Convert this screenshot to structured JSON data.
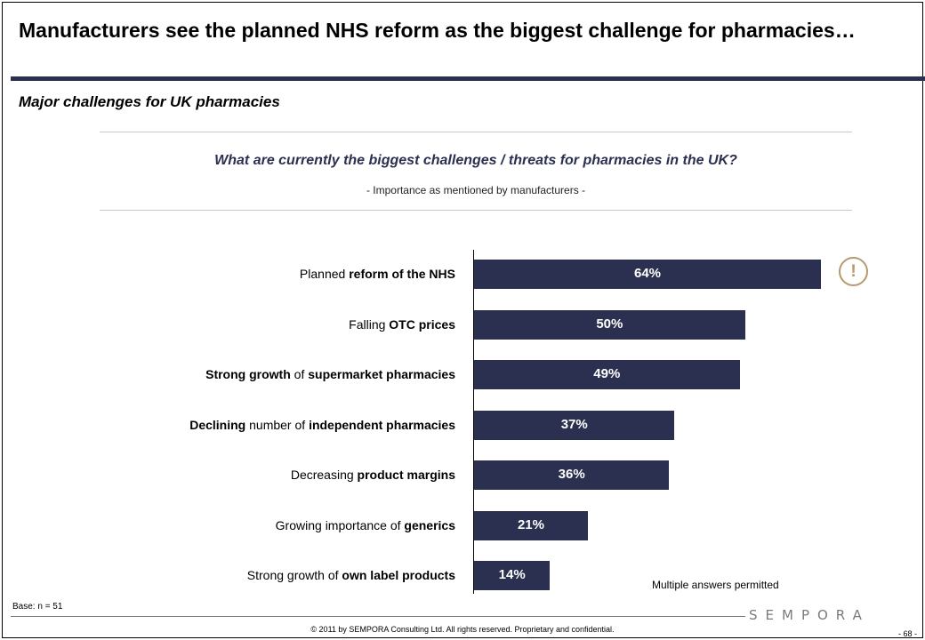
{
  "header": {
    "title": "Manufacturers see the planned NHS reform as the biggest challenge for pharmacies…",
    "subtitle": "Major challenges for UK pharmacies"
  },
  "chart_data": {
    "type": "bar",
    "orientation": "horizontal",
    "title": "What are currently the biggest challenges / threats for pharmacies in the UK?",
    "subtitle": "- Importance as mentioned by manufacturers -",
    "unit": "%",
    "xlim": [
      0,
      70
    ],
    "bar_color": "#2b3050",
    "categories": [
      {
        "parts": [
          {
            "t": "Planned ",
            "b": false
          },
          {
            "t": "reform of the NHS",
            "b": true
          }
        ],
        "value": 64,
        "label": "64%"
      },
      {
        "parts": [
          {
            "t": "Falling ",
            "b": false
          },
          {
            "t": "OTC prices",
            "b": true
          }
        ],
        "value": 50,
        "label": "50%"
      },
      {
        "parts": [
          {
            "t": "Strong growth",
            "b": true
          },
          {
            "t": " of ",
            "b": false
          },
          {
            "t": "supermarket pharmacies",
            "b": true
          }
        ],
        "value": 49,
        "label": "49%"
      },
      {
        "parts": [
          {
            "t": "Declining",
            "b": true
          },
          {
            "t": " number of ",
            "b": false
          },
          {
            "t": "independent pharmacies",
            "b": true
          }
        ],
        "value": 37,
        "label": "37%"
      },
      {
        "parts": [
          {
            "t": "Decreasing ",
            "b": false
          },
          {
            "t": "product margins",
            "b": true
          }
        ],
        "value": 36,
        "label": "36%"
      },
      {
        "parts": [
          {
            "t": "Growing importance of ",
            "b": false
          },
          {
            "t": "generics",
            "b": true
          }
        ],
        "value": 21,
        "label": "21%"
      },
      {
        "parts": [
          {
            "t": "Strong growth of ",
            "b": false
          },
          {
            "t": "own label products",
            "b": true
          }
        ],
        "value": 14,
        "label": "14%"
      }
    ],
    "highlight_icon": "exclamation-circle-icon",
    "highlight_symbol": "!",
    "note": "Multiple answers permitted"
  },
  "footer": {
    "base": "Base: n = 51",
    "logo": "SEMPORA",
    "copyright": "© 2011 by SEMPORA Consulting Ltd. All rights reserved. Proprietary and confidential.",
    "page": "- 68 -"
  }
}
